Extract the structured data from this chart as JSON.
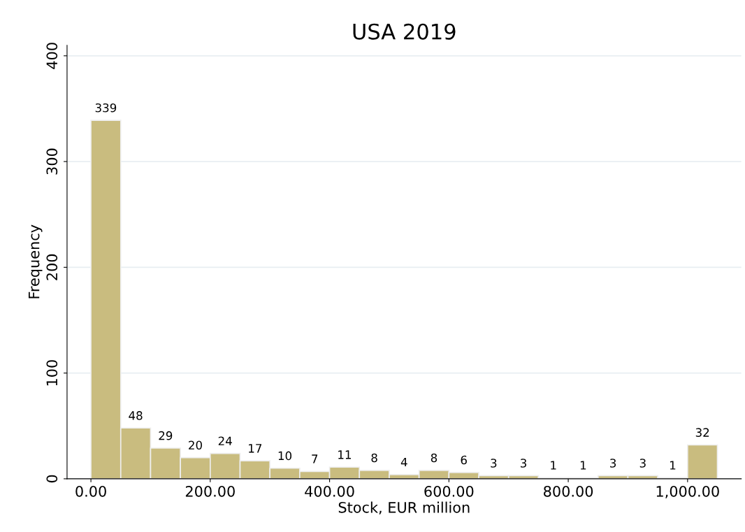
{
  "chart_data": {
    "type": "histogram",
    "title": "USA 2019",
    "xlabel": "Stock, EUR million",
    "ylabel": "Frequency",
    "bins": [
      0,
      50,
      100,
      150,
      200,
      250,
      300,
      350,
      400,
      450,
      500,
      550,
      600,
      650,
      700,
      750,
      800,
      850,
      900,
      950,
      1000,
      1050
    ],
    "values": [
      339,
      48,
      29,
      20,
      24,
      17,
      10,
      7,
      11,
      8,
      4,
      8,
      6,
      3,
      3,
      1,
      1,
      3,
      3,
      1,
      32
    ],
    "color": "#c9bc7f",
    "xlim": [
      -40,
      1090
    ],
    "ylim": [
      0,
      410
    ],
    "xticks": [
      {
        "value": 0,
        "label": "0.00"
      },
      {
        "value": 200,
        "label": "200.00"
      },
      {
        "value": 400,
        "label": "400.00"
      },
      {
        "value": 600,
        "label": "600.00"
      },
      {
        "value": 800,
        "label": "800.00"
      },
      {
        "value": 1000,
        "label": "1,000.00"
      }
    ],
    "yticks": [
      0,
      100,
      200,
      300,
      400
    ],
    "grid": "y",
    "data_labels": true
  }
}
